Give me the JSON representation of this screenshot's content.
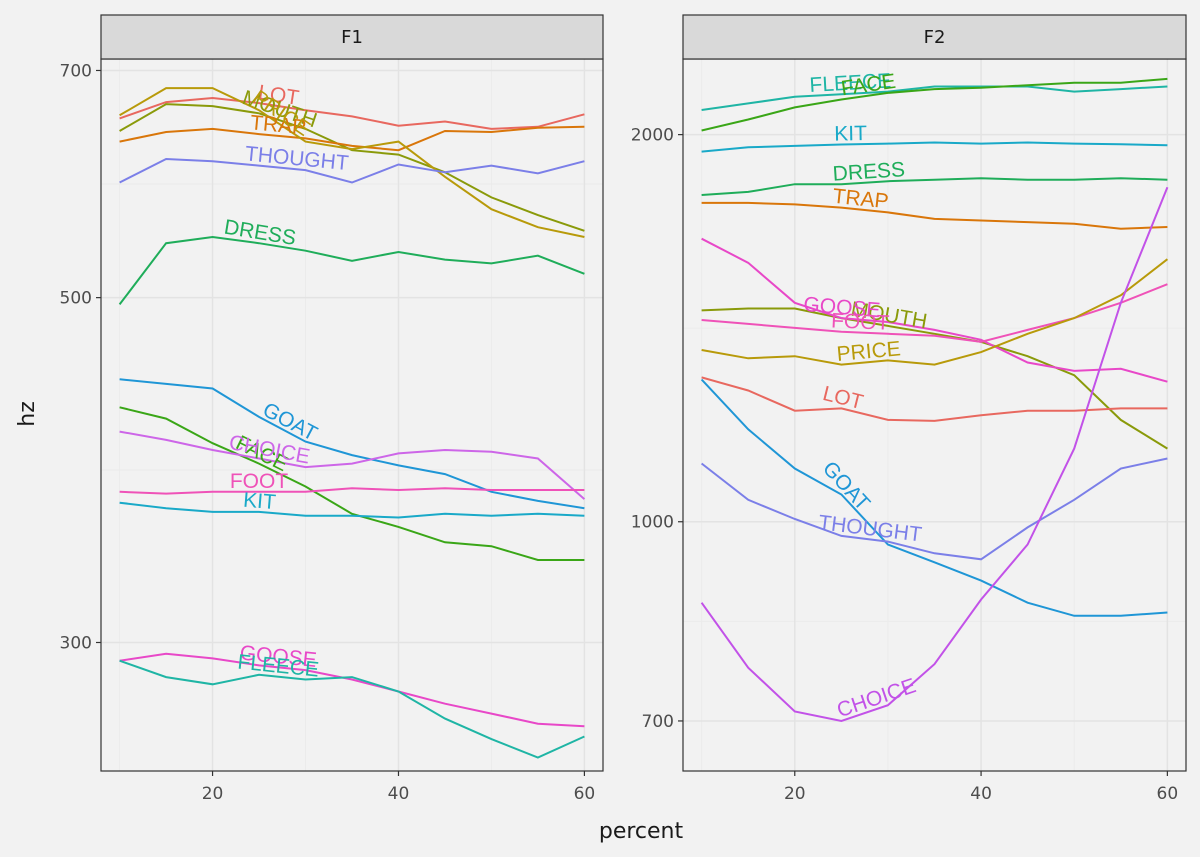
{
  "chart_data": {
    "type": "line",
    "xlabel": "percent",
    "ylabel": "hz",
    "y_scale": "log",
    "grid": true,
    "legend": "none (direct labels)",
    "x": [
      10,
      15,
      20,
      25,
      30,
      35,
      40,
      45,
      50,
      55,
      60
    ],
    "x_ticks": [
      20,
      40,
      60
    ],
    "panels": [
      {
        "strip": "F1",
        "xlim": [
          8,
          62
        ],
        "ylim": [
          248,
          712
        ],
        "y_ticks": [
          300,
          500,
          700
        ],
        "series": [
          {
            "name": "LOT",
            "color": "#e8685f",
            "label_at": 27,
            "values": [
              652,
              668,
              672,
              667,
              660,
              654,
              645,
              649,
              642,
              644,
              656
            ]
          },
          {
            "name": "MOUTH",
            "color": "#8a9a0a",
            "label_at": 27,
            "values": [
              640,
              666,
              664,
              657,
              642,
              622,
              618,
              602,
              580,
              565,
              552
            ]
          },
          {
            "name": "TRAP",
            "color": "#d9760a",
            "label_at": 27,
            "values": [
              630,
              639,
              642,
              637,
              633,
              626,
              622,
              640,
              639,
              643,
              644
            ]
          },
          {
            "name": "PRICE",
            "color": "#b89a0a",
            "label_at": 27,
            "values": [
              655,
              682,
              682,
              660,
              630,
              623,
              630,
              598,
              570,
              555,
              547
            ]
          },
          {
            "name": "THOUGHT",
            "color": "#7b7fe8",
            "label_at": 29,
            "values": [
              593,
              614,
              612,
              608,
              604,
              593,
              609,
              602,
              608,
              601,
              612
            ]
          },
          {
            "name": "DRESS",
            "color": "#1fad5a",
            "label_at": 25,
            "values": [
              495,
              542,
              547,
              542,
              536,
              528,
              535,
              529,
              526,
              532,
              518
            ]
          },
          {
            "name": "GOAT",
            "color": "#1f96d6",
            "label_at": 28,
            "values": [
              443,
              440,
              437,
              419,
              404,
              396,
              390,
              385,
              375,
              370,
              366
            ]
          },
          {
            "name": "FACE",
            "color": "#3aa617",
            "label_at": 25,
            "values": [
              425,
              418,
              403,
              391,
              378,
              363,
              356,
              348,
              346,
              339,
              339
            ]
          },
          {
            "name": "CHOICE",
            "color": "#cd66e8",
            "label_at": 26,
            "values": [
              410,
              405,
              399,
              394,
              389,
              391,
              397,
              399,
              398,
              394,
              371
            ]
          },
          {
            "name": "FOOT",
            "color": "#ef52b8",
            "label_at": 25,
            "values": [
              375,
              374,
              375,
              375,
              375,
              377,
              376,
              377,
              376,
              376,
              376
            ]
          },
          {
            "name": "KIT",
            "color": "#19a9c8",
            "label_at": 25,
            "values": [
              369,
              366,
              364,
              364,
              362,
              362,
              361,
              363,
              362,
              363,
              362
            ]
          },
          {
            "name": "GOOSE",
            "color": "#e848c8",
            "label_at": 27,
            "values": [
              292,
              295,
              293,
              290,
              288,
              284,
              279,
              274,
              270,
              266,
              265
            ]
          },
          {
            "name": "FLEECE",
            "color": "#1fb5a5",
            "label_at": 27,
            "values": [
              292,
              285,
              282,
              286,
              284,
              285,
              279,
              268,
              260,
              253,
              261
            ]
          }
        ]
      },
      {
        "strip": "F2",
        "xlim": [
          8,
          62
        ],
        "ylim": [
          640,
          2290
        ],
        "y_ticks": [
          700,
          1000,
          2000
        ],
        "series": [
          {
            "name": "FLEECE",
            "color": "#1fb5a5",
            "label_at": 26,
            "values": [
              2090,
              2115,
              2140,
              2150,
              2160,
              2180,
              2180,
              2180,
              2160,
              2170,
              2180
            ]
          },
          {
            "name": "FACE",
            "color": "#3aa617",
            "label_at": 28,
            "values": [
              2015,
              2055,
              2100,
              2130,
              2155,
              2170,
              2175,
              2185,
              2195,
              2195,
              2210
            ]
          },
          {
            "name": "KIT",
            "color": "#19a9c8",
            "label_at": 26,
            "values": [
              1940,
              1955,
              1960,
              1965,
              1968,
              1972,
              1968,
              1972,
              1968,
              1966,
              1962
            ]
          },
          {
            "name": "DRESS",
            "color": "#1fad5a",
            "label_at": 28,
            "values": [
              1795,
              1805,
              1830,
              1830,
              1840,
              1845,
              1850,
              1845,
              1845,
              1850,
              1845
            ]
          },
          {
            "name": "TRAP",
            "color": "#d9760a",
            "label_at": 27,
            "values": [
              1770,
              1770,
              1765,
              1755,
              1740,
              1720,
              1715,
              1710,
              1705,
              1690,
              1695
            ]
          },
          {
            "name": "MOUTH",
            "color": "#8a9a0a",
            "label_at": 30,
            "values": [
              1460,
              1465,
              1465,
              1440,
              1420,
              1400,
              1380,
              1345,
              1300,
              1200,
              1140
            ]
          },
          {
            "name": "GOOSE",
            "color": "#e848c8",
            "label_at": 25,
            "values": [
              1660,
              1590,
              1480,
              1440,
              1430,
              1410,
              1385,
              1330,
              1310,
              1315,
              1285
            ]
          },
          {
            "name": "FOOT",
            "color": "#ef52b8",
            "label_at": 27,
            "values": [
              1435,
              1425,
              1415,
              1405,
              1400,
              1395,
              1380,
              1410,
              1440,
              1480,
              1530
            ]
          },
          {
            "name": "PRICE",
            "color": "#b89a0a",
            "label_at": 28,
            "values": [
              1360,
              1340,
              1345,
              1325,
              1335,
              1325,
              1355,
              1400,
              1440,
              1500,
              1600
            ]
          },
          {
            "name": "LOT",
            "color": "#e8685f",
            "label_at": 25,
            "values": [
              1295,
              1265,
              1220,
              1225,
              1200,
              1198,
              1210,
              1220,
              1220,
              1225,
              1225
            ]
          },
          {
            "name": "GOAT",
            "color": "#1f96d6",
            "label_at": 25,
            "values": [
              1290,
              1180,
              1100,
              1050,
              960,
              930,
              900,
              865,
              845,
              845,
              850
            ]
          },
          {
            "name": "THOUGHT",
            "color": "#7b7fe8",
            "label_at": 28,
            "values": [
              1110,
              1040,
              1005,
              975,
              965,
              945,
              935,
              990,
              1040,
              1100,
              1120
            ]
          },
          {
            "name": "CHOICE",
            "color": "#c252e8",
            "label_at": 29,
            "values": [
              865,
              770,
              712,
              700,
              720,
              775,
              870,
              960,
              1140,
              1480,
              1820
            ]
          }
        ]
      }
    ]
  },
  "colors": {
    "panel_bg": "#f2f2f2",
    "grid_major": "#e3e3e3",
    "grid_minor": "#ebebeb",
    "strip_bg": "#d9d9d9",
    "frame": "#333333"
  }
}
